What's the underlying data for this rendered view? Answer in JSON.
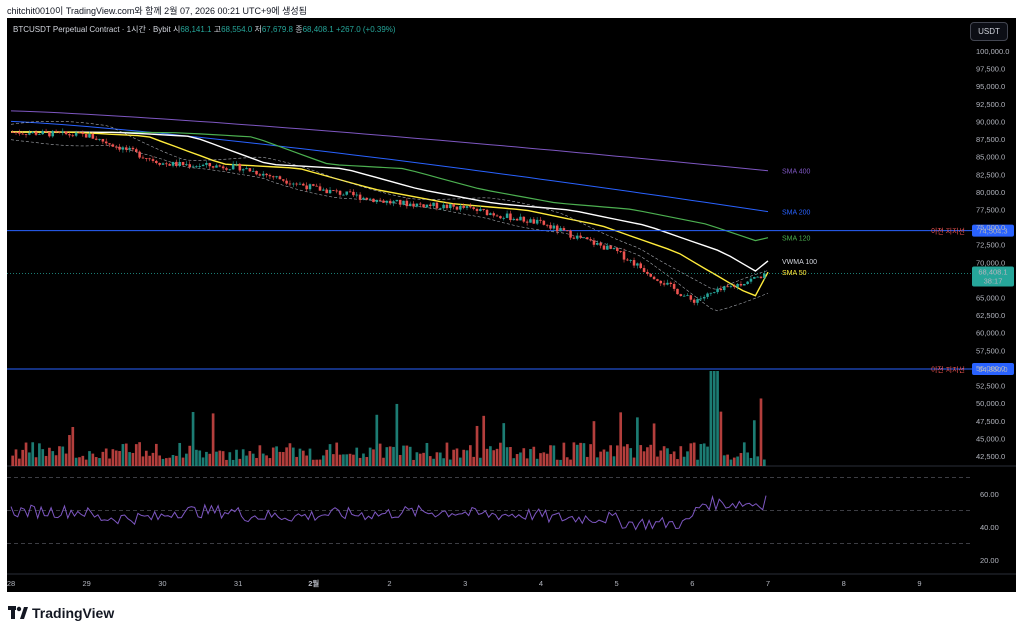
{
  "caption": "chitchit0010이 TradingView.com와 함께 2월 07, 2026 00:21 UTC+9에 생성됨",
  "legend": {
    "symbol": "BTCUSDT Perpetual Contract · 1시간 · Bybit",
    "open_label": "시",
    "open": "68,141.1",
    "high_label": "고",
    "high": "68,554.0",
    "low_label": "저",
    "low": "67,679.8",
    "close_label": "종",
    "close": "68,408.1",
    "change": "+267.0 (+0.39%)"
  },
  "currency_button": "USDT",
  "price_axis": {
    "ticks": [
      "100,000.0",
      "97,500.0",
      "95,000.0",
      "92,500.0",
      "90,000.0",
      "87,500.0",
      "85,000.0",
      "82,500.0",
      "80,000.0",
      "77,500.0",
      "75,000.0",
      "72,500.0",
      "70,000.0",
      "67,500.0",
      "65,000.0",
      "62,500.0",
      "60,000.0",
      "57,500.0",
      "55,000.0",
      "52,500.0",
      "50,000.0",
      "47,500.0",
      "45,000.0",
      "42,500.0"
    ],
    "current_price": "68,408.1",
    "countdown": "38:17",
    "level1": {
      "label": "이전 지지선",
      "price": "74,504.3"
    },
    "level2": {
      "label": "이전 지지선",
      "price": "54,850.0"
    }
  },
  "ma_labels": [
    "SMA 400",
    "SMA 200",
    "SMA 120",
    "VWMA 100",
    "SMA 50"
  ],
  "rsi_axis": {
    "ticks": [
      "60.00",
      "40.00",
      "20.00"
    ]
  },
  "time_axis": {
    "ticks": [
      "28",
      "29",
      "30",
      "31",
      "2월",
      "2",
      "3",
      "4",
      "5",
      "6",
      "7",
      "8",
      "9"
    ]
  },
  "colors": {
    "up": "#26a69a",
    "down": "#ef5350",
    "sma400": "#7e57c2",
    "sma200": "#2962ff",
    "sma120": "#4caf50",
    "vwma100": "#ffffff",
    "sma50": "#ffeb3b",
    "support": "#2962ff",
    "rsi": "#7e57c2"
  },
  "brand": "TradingView",
  "chart_data": {
    "type": "candlestick",
    "symbol": "BTCUSDT",
    "interval": "1h",
    "y_range": [
      41000,
      102000
    ],
    "support_levels": [
      74504.3,
      54850.0
    ],
    "approx_close_path": [
      {
        "day": "28",
        "price": 88500
      },
      {
        "day": "29",
        "price": 88000
      },
      {
        "day": "30",
        "price": 84000
      },
      {
        "day": "31",
        "price": 83500
      },
      {
        "day": "2월",
        "price": 80500
      },
      {
        "day": "2",
        "price": 78500
      },
      {
        "day": "3",
        "price": 77700
      },
      {
        "day": "4",
        "price": 75500
      },
      {
        "day": "5",
        "price": 71500
      },
      {
        "day": "6",
        "price": 64500
      },
      {
        "day": "7",
        "price": 68408.1
      }
    ],
    "ma_end_values": {
      "SMA 400": 83000,
      "SMA 200": 77200,
      "SMA 120": 73500,
      "VWMA 100": 70200,
      "SMA 50": 68600
    },
    "rsi_levels": [
      70,
      50,
      30
    ],
    "rsi_last": 59
  }
}
